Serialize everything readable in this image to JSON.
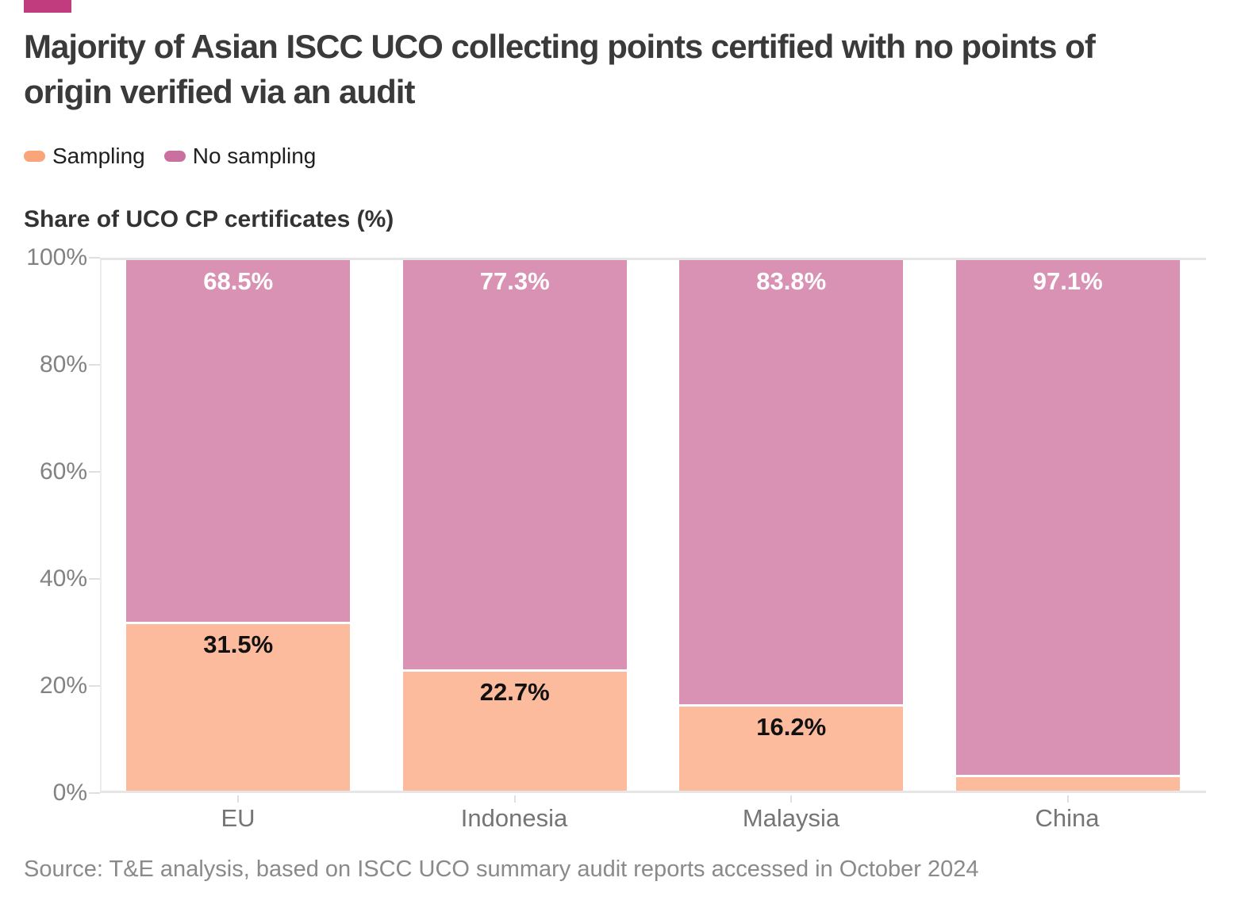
{
  "brand_color": "#c13c7e",
  "header": {
    "title": "Majority of Asian ISCC UCO collecting points certified with no points of origin verified via an audit"
  },
  "legend": [
    {
      "label": "Sampling",
      "color": "#f9a47b"
    },
    {
      "label": "No sampling",
      "color": "#c9709f"
    }
  ],
  "axis_title": "Share of UCO CP certificates (%)",
  "source": "Source: T&E analysis, based on ISCC UCO summary audit reports accessed in October 2024",
  "colors": {
    "sampling_bar": "#fcbb9c",
    "no_sampling_bar": "#d992b4"
  },
  "chart_data": {
    "type": "bar",
    "stacked": true,
    "title": "Majority of Asian ISCC UCO collecting points certified with no points of origin verified via an audit",
    "ylabel": "Share of UCO CP certificates (%)",
    "categories": [
      "EU",
      "Indonesia",
      "Malaysia",
      "China"
    ],
    "series": [
      {
        "name": "Sampling",
        "values": [
          31.5,
          22.7,
          16.2,
          2.9
        ],
        "labels": [
          "31.5%",
          "22.7%",
          "16.2%",
          ""
        ]
      },
      {
        "name": "No sampling",
        "values": [
          68.5,
          77.3,
          83.8,
          97.1
        ],
        "labels": [
          "68.5%",
          "77.3%",
          "83.8%",
          "97.1%"
        ]
      }
    ],
    "ylim": [
      0,
      100
    ],
    "yticks": [
      "0%",
      "20%",
      "40%",
      "60%",
      "80%",
      "100%"
    ],
    "grid": true,
    "legend_position": "top-left"
  }
}
